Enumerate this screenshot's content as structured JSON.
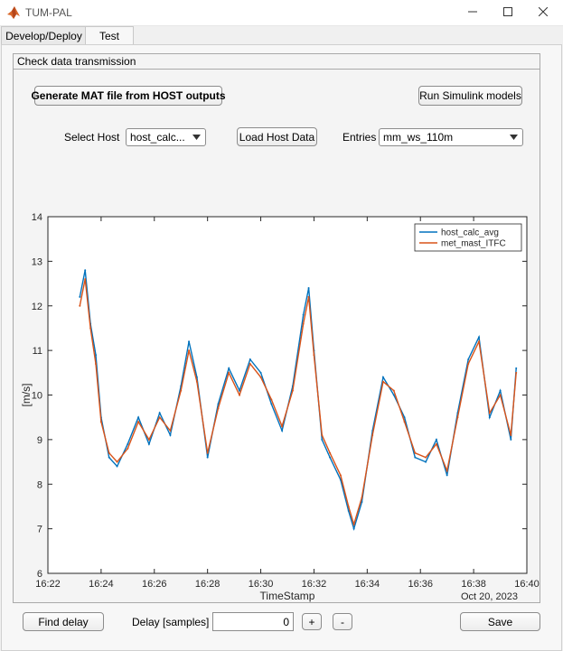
{
  "window": {
    "title": "TUM-PAL"
  },
  "tabs": [
    {
      "label": "Develop/Deploy",
      "active": false
    },
    {
      "label": "Test",
      "active": true
    }
  ],
  "panel": {
    "title": "Check data transmission",
    "generate_button": "Generate MAT file from HOST outputs",
    "simulink_button": "Run Simulink models",
    "select_host_label": "Select Host",
    "select_host_value": "host_calc...",
    "load_button": "Load Host Data",
    "entries_label": "Entries",
    "entries_value": "mm_ws_110m"
  },
  "bottom": {
    "find_delay_button": "Find delay",
    "delay_label": "Delay [samples]",
    "delay_value": "0",
    "plus_button": "+",
    "minus_button": "-",
    "save_button": "Save"
  },
  "colors": {
    "series1": "#0072bd",
    "series2": "#d95319"
  },
  "chart_data": {
    "type": "line",
    "xlabel": "TimeStamp",
    "ylabel": "[m/s]",
    "date_label": "Oct 20, 2023",
    "x_ticks": [
      "16:22",
      "16:24",
      "16:26",
      "16:28",
      "16:30",
      "16:32",
      "16:34",
      "16:36",
      "16:38",
      "16:40"
    ],
    "y_ticks": [
      6,
      7,
      8,
      9,
      10,
      11,
      12,
      13,
      14
    ],
    "xlim": [
      "16:22",
      "16:40"
    ],
    "ylim": [
      6,
      14
    ],
    "legend_position": "top-right",
    "x": [
      "16:23.2",
      "16:23.4",
      "16:23.6",
      "16:23.8",
      "16:24",
      "16:24.3",
      "16:24.6",
      "16:25",
      "16:25.4",
      "16:25.8",
      "16:26.2",
      "16:26.6",
      "16:27",
      "16:27.3",
      "16:27.6",
      "16:28",
      "16:28.4",
      "16:28.8",
      "16:29.2",
      "16:29.6",
      "16:30",
      "16:30.4",
      "16:30.8",
      "16:31.2",
      "16:31.6",
      "16:31.8",
      "16:32",
      "16:32.3",
      "16:32.6",
      "16:33",
      "16:33.3",
      "16:33.5",
      "16:33.8",
      "16:34.2",
      "16:34.6",
      "16:35",
      "16:35.4",
      "16:35.8",
      "16:36.2",
      "16:36.6",
      "16:37",
      "16:37.4",
      "16:37.8",
      "16:38.2",
      "16:38.6",
      "16:39",
      "16:39.4",
      "16:39.6"
    ],
    "series": [
      {
        "name": "host_calc_avg",
        "values": [
          12.2,
          12.8,
          11.6,
          10.9,
          9.5,
          8.6,
          8.4,
          8.9,
          9.5,
          8.9,
          9.6,
          9.1,
          10.2,
          11.2,
          10.4,
          8.6,
          9.8,
          10.6,
          10.1,
          10.8,
          10.5,
          9.8,
          9.2,
          10.2,
          11.8,
          12.4,
          11.0,
          9.0,
          8.6,
          8.1,
          7.4,
          7.0,
          7.6,
          9.2,
          10.4,
          10.0,
          9.5,
          8.6,
          8.5,
          9.0,
          8.2,
          9.6,
          10.8,
          11.3,
          9.5,
          10.1,
          9.0,
          10.6
        ]
      },
      {
        "name": "met_mast_ITFC",
        "values": [
          12.0,
          12.6,
          11.5,
          10.7,
          9.4,
          8.7,
          8.5,
          8.8,
          9.4,
          9.0,
          9.5,
          9.2,
          10.1,
          11.0,
          10.3,
          8.7,
          9.7,
          10.5,
          10.0,
          10.7,
          10.4,
          9.9,
          9.3,
          10.1,
          11.6,
          12.2,
          10.9,
          9.1,
          8.7,
          8.2,
          7.5,
          7.1,
          7.7,
          9.1,
          10.3,
          10.1,
          9.4,
          8.7,
          8.6,
          8.9,
          8.3,
          9.5,
          10.7,
          11.2,
          9.6,
          10.0,
          9.1,
          10.5
        ]
      }
    ]
  }
}
